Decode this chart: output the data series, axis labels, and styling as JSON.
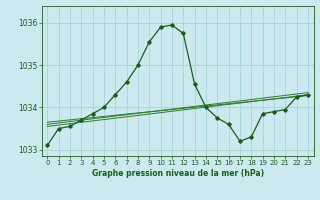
{
  "title": "Graphe pression niveau de la mer (hPa)",
  "bg_color": "#cce9f0",
  "grid_color": "#a8d4de",
  "line_color_main": "#1a5c1a",
  "line_color_trend": "#2d7a2d",
  "xlim": [
    -0.5,
    23.5
  ],
  "ylim": [
    1032.85,
    1036.4
  ],
  "yticks": [
    1033,
    1034,
    1035,
    1036
  ],
  "xticks": [
    0,
    1,
    2,
    3,
    4,
    5,
    6,
    7,
    8,
    9,
    10,
    11,
    12,
    13,
    14,
    15,
    16,
    17,
    18,
    19,
    20,
    21,
    22,
    23
  ],
  "main_series": [
    [
      0,
      1033.1
    ],
    [
      1,
      1033.5
    ],
    [
      2,
      1033.55
    ],
    [
      3,
      1033.7
    ],
    [
      4,
      1033.85
    ],
    [
      5,
      1034.0
    ],
    [
      6,
      1034.3
    ],
    [
      7,
      1034.6
    ],
    [
      8,
      1035.0
    ],
    [
      9,
      1035.55
    ],
    [
      10,
      1035.9
    ],
    [
      11,
      1035.95
    ],
    [
      12,
      1035.75
    ],
    [
      13,
      1034.55
    ],
    [
      14,
      1034.0
    ],
    [
      15,
      1033.75
    ],
    [
      16,
      1033.6
    ],
    [
      17,
      1033.2
    ],
    [
      18,
      1033.3
    ],
    [
      19,
      1033.85
    ],
    [
      20,
      1033.9
    ],
    [
      21,
      1033.95
    ],
    [
      22,
      1034.25
    ],
    [
      23,
      1034.3
    ]
  ],
  "trend_series": [
    [
      0,
      1033.55
    ],
    [
      23,
      1034.3
    ]
  ],
  "trend2_series": [
    [
      0,
      1033.6
    ],
    [
      23,
      1034.35
    ]
  ],
  "trend3_series": [
    [
      0,
      1033.65
    ],
    [
      23,
      1034.28
    ]
  ]
}
